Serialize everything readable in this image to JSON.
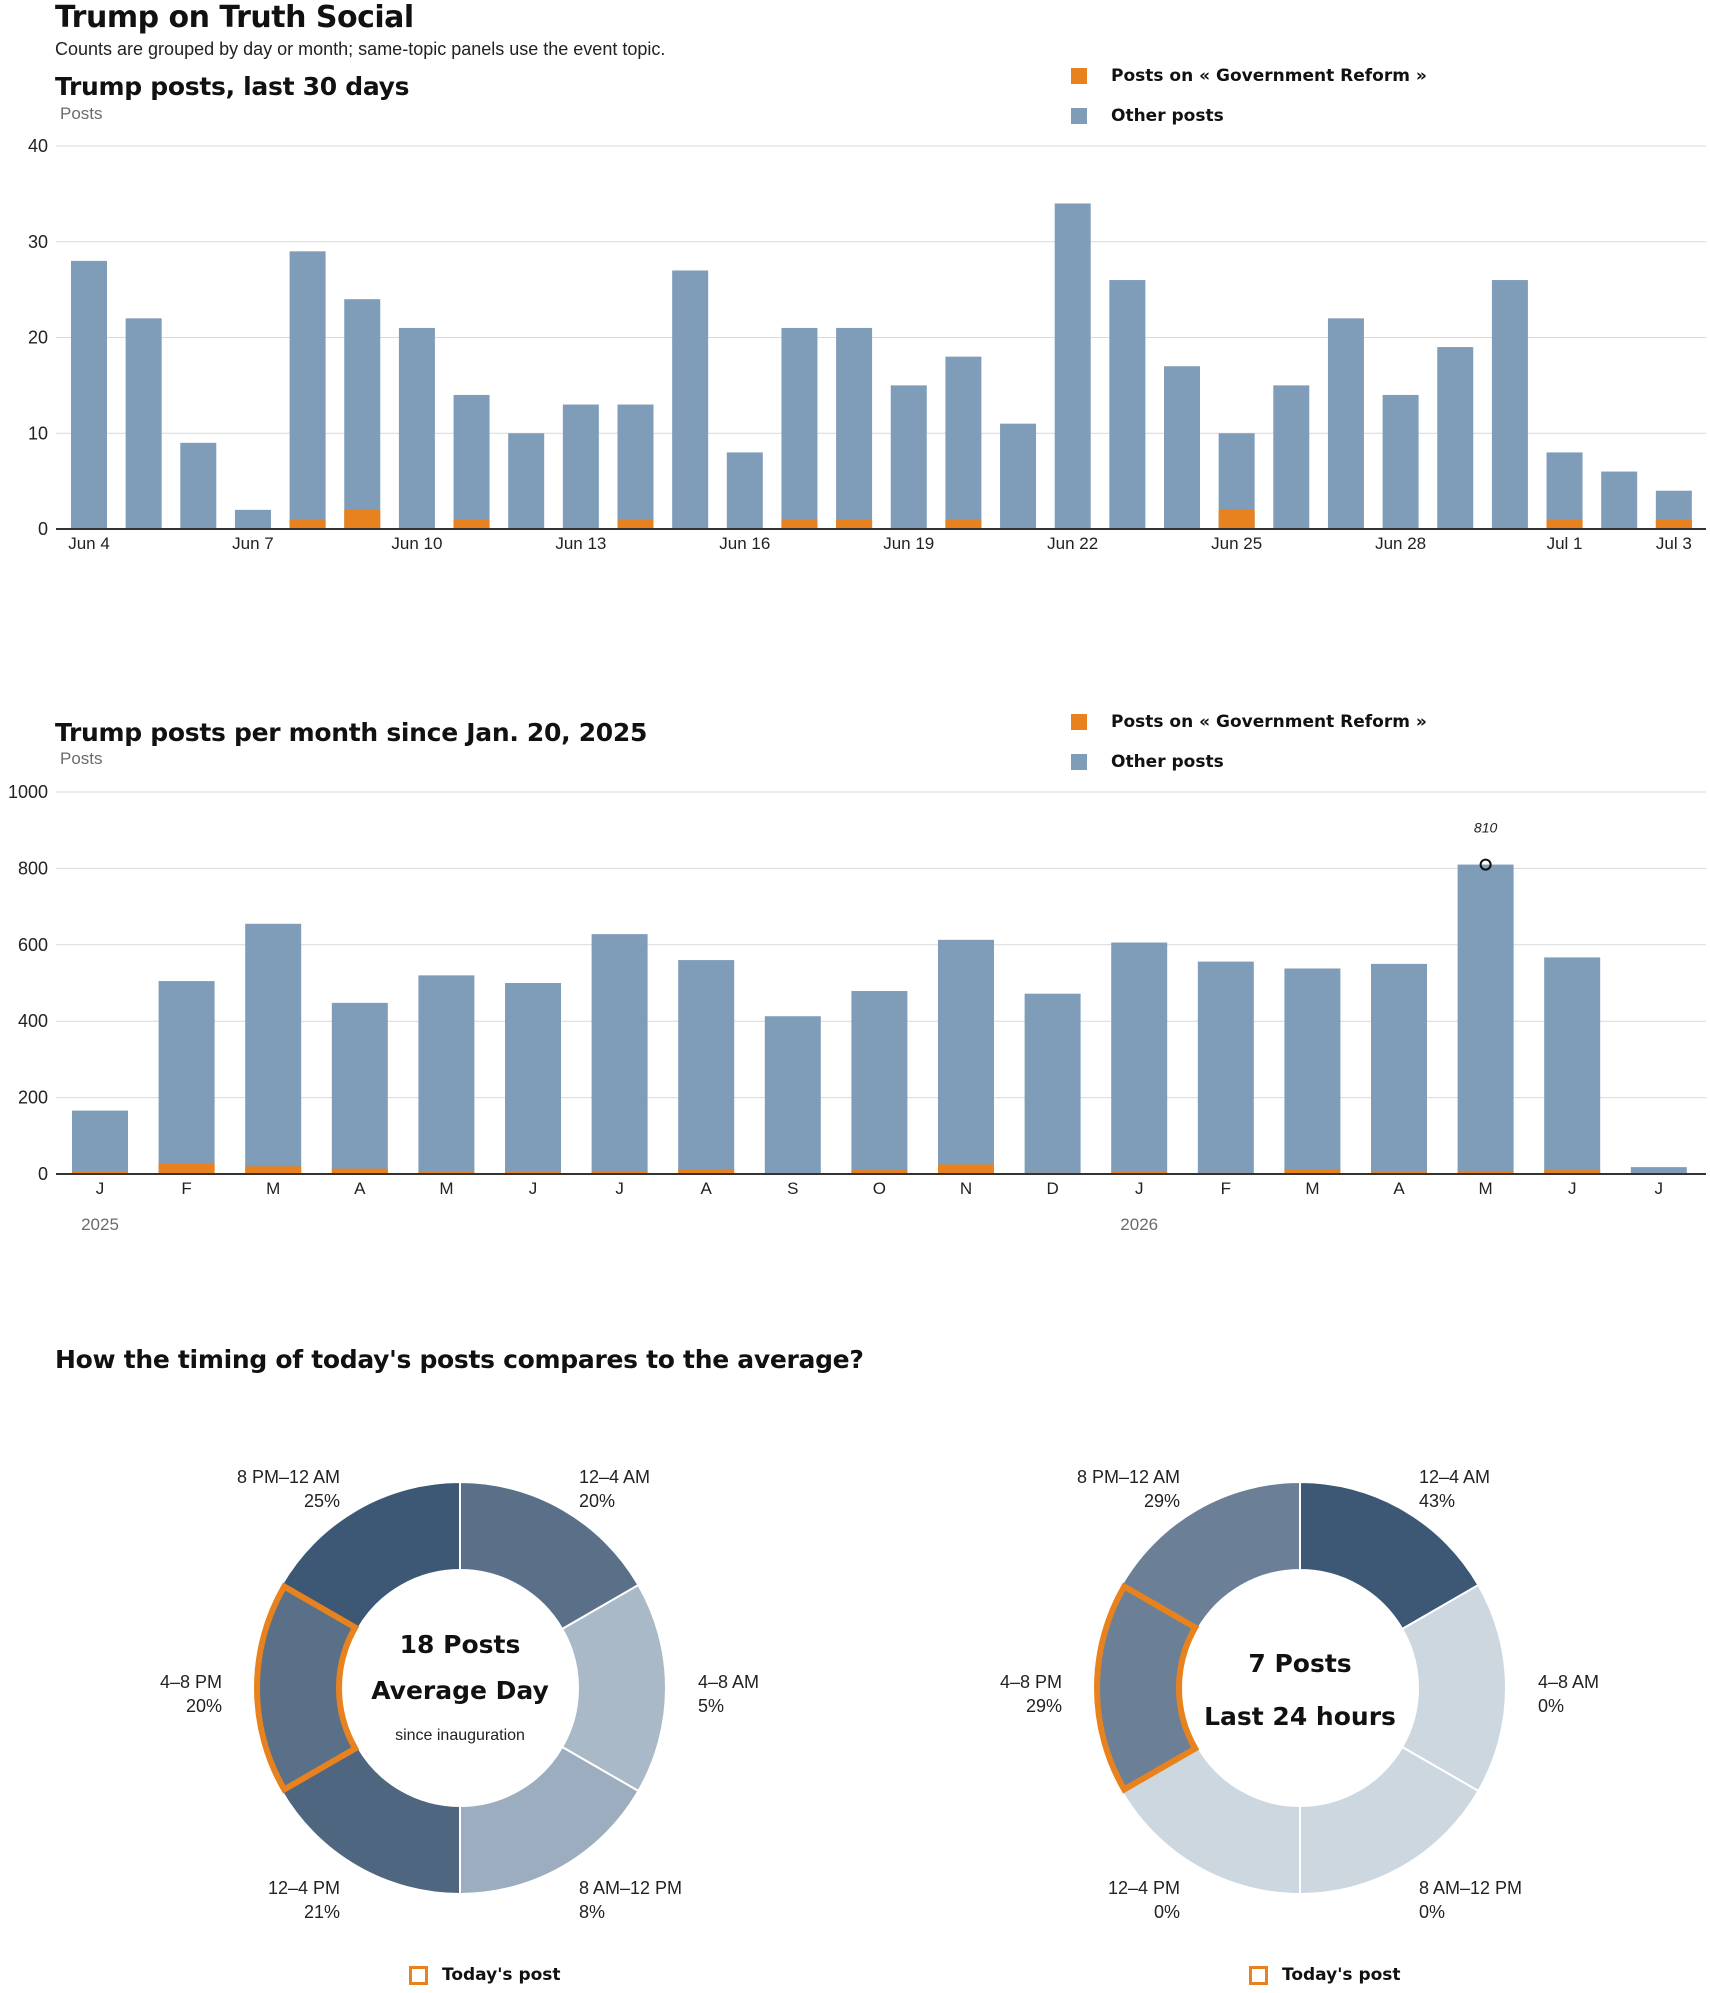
{
  "header": {
    "title": "Trump on Truth Social",
    "note": "Counts are grouped by day or month; same-topic panels use the event topic."
  },
  "legend": {
    "topic": "Posts on « Government Reform »",
    "other": "Other posts"
  },
  "colors": {
    "topic": "#e8821e",
    "other": "#7f9db9",
    "highlight": "#e8821e"
  },
  "chart_data": [
    {
      "type": "bar",
      "title": "Trump posts, last 30 days",
      "ylabel": "Posts",
      "ylim": [
        0,
        40
      ],
      "yticks": [
        0,
        10,
        20,
        30,
        40
      ],
      "categories": [
        "Jun 4",
        "Jun 5",
        "Jun 6",
        "Jun 7",
        "Jun 8",
        "Jun 9",
        "Jun 10",
        "Jun 11",
        "Jun 12",
        "Jun 13",
        "Jun 14",
        "Jun 15",
        "Jun 16",
        "Jun 17",
        "Jun 18",
        "Jun 19",
        "Jun 20",
        "Jun 21",
        "Jun 22",
        "Jun 23",
        "Jun 24",
        "Jun 25",
        "Jun 26",
        "Jun 27",
        "Jun 28",
        "Jun 29",
        "Jun 30",
        "Jul 1",
        "Jul 2",
        "Jul 3"
      ],
      "tick_labels": [
        "Jun 4",
        "",
        "",
        "Jun 7",
        "",
        "",
        "Jun 10",
        "",
        "",
        "Jun 13",
        "",
        "",
        "Jun 16",
        "",
        "",
        "Jun 19",
        "",
        "",
        "Jun 22",
        "",
        "",
        "Jun 25",
        "",
        "",
        "Jun 28",
        "",
        "",
        "Jul 1",
        "",
        "Jul 3"
      ],
      "stacked": true,
      "series": [
        {
          "name": "Posts on « Government Reform »",
          "values": [
            0,
            0,
            0,
            0,
            1,
            2,
            0,
            1,
            0,
            0,
            1,
            0,
            0,
            1,
            1,
            0,
            1,
            0,
            0,
            0,
            0,
            2,
            0,
            0,
            0,
            0,
            0,
            1,
            0,
            1
          ]
        },
        {
          "name": "Other posts",
          "values": [
            28,
            22,
            9,
            2,
            28,
            22,
            21,
            13,
            10,
            13,
            12,
            27,
            8,
            20,
            20,
            15,
            17,
            11,
            34,
            26,
            17,
            8,
            15,
            22,
            14,
            19,
            26,
            7,
            6,
            3
          ]
        }
      ],
      "grid": true,
      "legend": "top-right"
    },
    {
      "type": "bar",
      "title": "Trump posts per month since Jan. 20, 2025",
      "ylabel": "Posts",
      "ylim": [
        0,
        1000
      ],
      "yticks": [
        0,
        200,
        400,
        600,
        800,
        1000
      ],
      "categories": [
        "J",
        "F",
        "M",
        "A",
        "M",
        "J",
        "J",
        "A",
        "S",
        "O",
        "N",
        "D",
        "J",
        "F",
        "M",
        "A",
        "M",
        "J",
        "J"
      ],
      "year_labels": [
        {
          "label": "2025",
          "index": 0
        },
        {
          "label": "2026",
          "index": 12
        }
      ],
      "stacked": true,
      "series": [
        {
          "name": "Posts on « Government Reform »",
          "values": [
            6,
            28,
            20,
            14,
            5,
            5,
            8,
            12,
            2,
            10,
            25,
            3,
            5,
            3,
            12,
            5,
            8,
            10,
            0
          ]
        },
        {
          "name": "Other posts",
          "values": [
            160,
            477,
            635,
            434,
            515,
            495,
            620,
            548,
            411,
            469,
            588,
            469,
            601,
            553,
            526,
            545,
            802,
            557,
            18
          ]
        }
      ],
      "annotation": {
        "index": 16,
        "value": 810,
        "label": "810"
      },
      "grid": true,
      "legend": "top-right"
    },
    {
      "type": "pie",
      "donut": true,
      "center": {
        "line1": "18 Posts",
        "line2": "Average Day",
        "line3": "since inauguration"
      },
      "slices": [
        {
          "label": "12–4 AM",
          "pct": "20%",
          "value": 20,
          "color": "#5a7089"
        },
        {
          "label": "4–8 AM",
          "pct": "5%",
          "value": 5,
          "color": "#aab9c7"
        },
        {
          "label": "8 AM–12 PM",
          "pct": "8%",
          "value": 8,
          "color": "#9badbe"
        },
        {
          "label": "12–4 PM",
          "pct": "21%",
          "value": 21,
          "color": "#4f6680"
        },
        {
          "label": "4–8 PM",
          "pct": "20%",
          "value": 20,
          "color": "#5a7089",
          "highlight": true
        },
        {
          "label": "8 PM–12 AM",
          "pct": "25%",
          "value": 25,
          "color": "#3d5874"
        }
      ]
    },
    {
      "type": "pie",
      "donut": true,
      "center": {
        "line1": "7 Posts",
        "line2": "Last 24 hours"
      },
      "slices": [
        {
          "label": "12–4 AM",
          "pct": "43%",
          "value": 43,
          "color": "#3d5874"
        },
        {
          "label": "4–8 AM",
          "pct": "0%",
          "value": 0,
          "color": "#cdd7e0"
        },
        {
          "label": "8 AM–12 PM",
          "pct": "0%",
          "value": 0,
          "color": "#cdd7e0"
        },
        {
          "label": "12–4 PM",
          "pct": "0%",
          "value": 0,
          "color": "#cdd7e0"
        },
        {
          "label": "4–8 PM",
          "pct": "29%",
          "value": 29,
          "color": "#6b8097",
          "highlight": true
        },
        {
          "label": "8 PM–12 AM",
          "pct": "29%",
          "value": 29,
          "color": "#6b8097"
        }
      ]
    }
  ],
  "timing": {
    "title": "How the timing of today's posts compares to the average?",
    "today_legend": "Today's post"
  }
}
